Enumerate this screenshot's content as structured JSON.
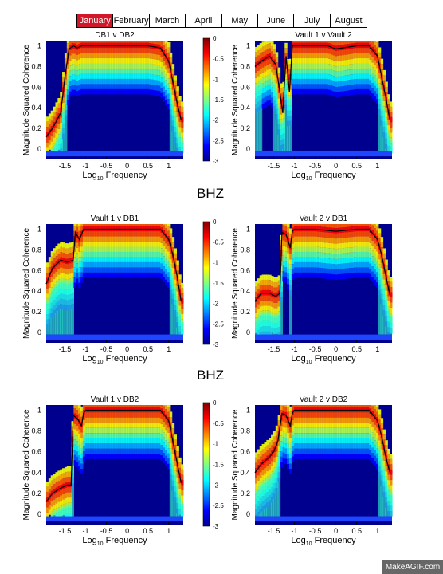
{
  "month_tabs": [
    "January",
    "February",
    "March",
    "April",
    "May",
    "June",
    "July",
    "August"
  ],
  "active_month": "January",
  "row_labels": [
    "BHZ",
    "BHZ"
  ],
  "watermark": "MakeAGIF.com",
  "colorbar": {
    "ticks": [
      "0",
      "-0.5",
      "-1",
      "-1.5",
      "-2",
      "-2.5",
      "-3"
    ],
    "range": [
      -3,
      0
    ]
  },
  "chart_data": [
    {
      "type": "heatmap",
      "title": "DB1 v DB2",
      "xlabel_base": "Log",
      "xlabel_sub": "10",
      "xlabel_rest": " Frequency",
      "ylabel": "Magnitude Squared Coherence",
      "xticks": [
        "-1.5",
        "-1",
        "-0.5",
        "0",
        "0.5",
        "1"
      ],
      "yticks": [
        "0",
        "0.2",
        "0.4",
        "0.6",
        "0.8",
        "1"
      ],
      "xlim": [
        -1.95,
        1.35
      ],
      "ylim": [
        -0.1,
        1.05
      ],
      "has_colorbar": true,
      "line": {
        "x": [
          -1.95,
          -1.8,
          -1.6,
          -1.5,
          -1.4,
          -1.3,
          -1.2,
          -1.1,
          -1,
          -0.5,
          0,
          0.5,
          0.8,
          1,
          1.1,
          1.2,
          1.3
        ],
        "y": [
          0.12,
          0.2,
          0.35,
          0.7,
          0.97,
          1,
          0.98,
          1,
          1,
          1,
          1,
          1,
          0.98,
          0.85,
          0.65,
          0.45,
          0.28
        ]
      }
    },
    {
      "type": "heatmap",
      "title": "Vault 1 v Vault 2",
      "xlabel_base": "Log",
      "xlabel_sub": "10",
      "xlabel_rest": " Frequency",
      "ylabel": "Magnitude Squared Coherence",
      "xticks": [
        "-1.5",
        "-1",
        "-0.5",
        "0",
        "0.5",
        "1"
      ],
      "yticks": [
        "0",
        "0.2",
        "0.4",
        "0.6",
        "0.8",
        "1"
      ],
      "xlim": [
        -1.95,
        1.35
      ],
      "ylim": [
        -0.1,
        1.05
      ],
      "has_colorbar": false,
      "line": {
        "x": [
          -1.95,
          -1.8,
          -1.6,
          -1.45,
          -1.35,
          -1.28,
          -1.2,
          -1.12,
          -1.05,
          -1,
          -0.5,
          -0.2,
          0,
          0.5,
          0.8,
          1,
          1.1,
          1.2,
          1.3
        ],
        "y": [
          0.8,
          0.85,
          0.9,
          0.82,
          0.55,
          0.35,
          0.9,
          0.55,
          1,
          1,
          1,
          1,
          0.97,
          1,
          1,
          0.9,
          0.7,
          0.5,
          0.28
        ]
      }
    },
    {
      "type": "heatmap",
      "title": "Vault 1 v DB1",
      "xlabel_base": "Log",
      "xlabel_sub": "10",
      "xlabel_rest": " Frequency",
      "ylabel": "Magnitude Squared Coherence",
      "xticks": [
        "-1.5",
        "-1",
        "-0.5",
        "0",
        "0.5",
        "1"
      ],
      "yticks": [
        "0",
        "0.2",
        "0.4",
        "0.6",
        "0.8",
        "1"
      ],
      "xlim": [
        -1.95,
        1.35
      ],
      "ylim": [
        -0.1,
        1.05
      ],
      "has_colorbar": true,
      "line": {
        "x": [
          -1.95,
          -1.8,
          -1.6,
          -1.45,
          -1.3,
          -1.25,
          -1.15,
          -1.05,
          -1,
          -0.5,
          0,
          0.5,
          0.8,
          1,
          1.1,
          1.2,
          1.3
        ],
        "y": [
          0.47,
          0.62,
          0.7,
          0.68,
          0.7,
          0.97,
          0.9,
          1,
          1,
          1,
          1,
          1,
          1,
          0.9,
          0.75,
          0.55,
          0.3
        ]
      }
    },
    {
      "type": "heatmap",
      "title": "Vault 2 v DB1",
      "xlabel_base": "Log",
      "xlabel_sub": "10",
      "xlabel_rest": " Frequency",
      "ylabel": "Magnitude Squared Coherence",
      "xticks": [
        "-1.5",
        "-1",
        "-0.5",
        "0",
        "0.5",
        "1"
      ],
      "yticks": [
        "0",
        "0.2",
        "0.4",
        "0.6",
        "0.8",
        "1"
      ],
      "xlim": [
        -1.95,
        1.35
      ],
      "ylim": [
        -0.1,
        1.05
      ],
      "has_colorbar": false,
      "line": {
        "x": [
          -1.95,
          -1.8,
          -1.6,
          -1.45,
          -1.35,
          -1.3,
          -1.2,
          -1.1,
          -1.05,
          -1,
          -0.5,
          0,
          0.5,
          0.8,
          1,
          1.1,
          1.2,
          1.3
        ],
        "y": [
          0.3,
          0.38,
          0.38,
          0.35,
          0.38,
          0.97,
          0.95,
          0.82,
          0.98,
          1,
          1,
          0.98,
          1,
          1,
          0.9,
          0.75,
          0.55,
          0.36
        ]
      }
    },
    {
      "type": "heatmap",
      "title": "Vault 1 v DB2",
      "xlabel_base": "Log",
      "xlabel_sub": "10",
      "xlabel_rest": " Frequency",
      "ylabel": "Magnitude Squared Coherence",
      "xticks": [
        "-1.5",
        "-1",
        "-0.5",
        "0",
        "0.5",
        "1"
      ],
      "yticks": [
        "0",
        "0.2",
        "0.4",
        "0.6",
        "0.8",
        "1"
      ],
      "xlim": [
        -1.95,
        1.35
      ],
      "ylim": [
        -0.1,
        1.05
      ],
      "has_colorbar": true,
      "line": {
        "x": [
          -1.95,
          -1.8,
          -1.6,
          -1.45,
          -1.35,
          -1.3,
          -1.2,
          -1.1,
          -1.05,
          -1,
          -0.5,
          0,
          0.5,
          0.8,
          1,
          1.1,
          1.2,
          1.3
        ],
        "y": [
          0.12,
          0.2,
          0.25,
          0.28,
          0.28,
          0.95,
          0.92,
          0.85,
          0.97,
          1,
          1,
          1,
          1,
          1,
          0.9,
          0.7,
          0.5,
          0.3
        ]
      }
    },
    {
      "type": "heatmap",
      "title": "Vault 2 v DB2",
      "xlabel_base": "Log",
      "xlabel_sub": "10",
      "xlabel_rest": " Frequency",
      "ylabel": "Magnitude Squared Coherence",
      "xticks": [
        "-1.5",
        "-1",
        "-0.5",
        "0",
        "0.5",
        "1"
      ],
      "yticks": [
        "0",
        "0.2",
        "0.4",
        "0.6",
        "0.8",
        "1"
      ],
      "xlim": [
        -1.95,
        1.35
      ],
      "ylim": [
        -0.1,
        1.05
      ],
      "has_colorbar": false,
      "line": {
        "x": [
          -1.95,
          -1.8,
          -1.6,
          -1.5,
          -1.4,
          -1.3,
          -1.2,
          -1.1,
          -1.05,
          -1,
          -0.5,
          0,
          0.5,
          0.8,
          1,
          1.1,
          1.2,
          1.3
        ],
        "y": [
          0.4,
          0.48,
          0.55,
          0.6,
          0.7,
          0.97,
          0.95,
          0.85,
          0.97,
          1,
          1,
          1,
          1,
          1,
          0.9,
          0.75,
          0.55,
          0.4
        ]
      }
    }
  ]
}
